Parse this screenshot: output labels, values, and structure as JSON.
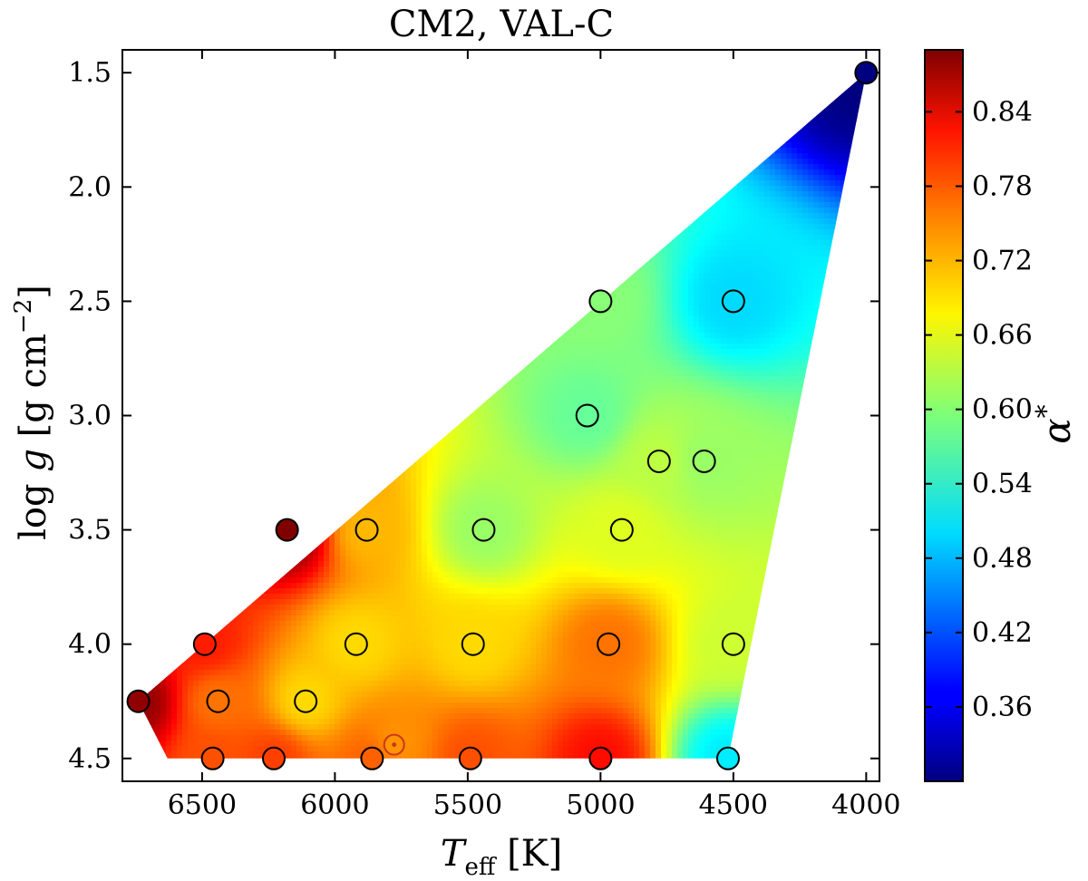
{
  "chart_data": {
    "type": "scatter",
    "title": "CM2, VAL-C",
    "xlabel": {
      "main": "T",
      "sub": "eff",
      "unit": " [K]"
    },
    "ylabel": {
      "pre": "log ",
      "var": "g",
      "unit": " [g cm",
      "exp": "−2",
      "close": "]"
    },
    "xlim": [
      6800,
      3950
    ],
    "ylim": [
      4.6,
      1.4
    ],
    "x_ticks": [
      6500,
      6000,
      5500,
      5000,
      4500,
      4000
    ],
    "y_ticks": [
      1.5,
      2.0,
      2.5,
      3.0,
      3.5,
      4.0,
      4.5
    ],
    "x_tick_labels": [
      "6500",
      "6000",
      "5500",
      "5000",
      "4500",
      "4000"
    ],
    "y_tick_labels": [
      "1.5",
      "2.0",
      "2.5",
      "3.0",
      "3.5",
      "4.0",
      "4.5"
    ],
    "colorbar": {
      "label": "α",
      "label_sup": "*",
      "range": [
        0.3,
        0.89
      ],
      "ticks": [
        0.36,
        0.42,
        0.48,
        0.54,
        0.6,
        0.66,
        0.72,
        0.78,
        0.84
      ],
      "tick_labels": [
        "0.36",
        "0.42",
        "0.48",
        "0.54",
        "0.60",
        "0.66",
        "0.72",
        "0.78",
        "0.84"
      ]
    },
    "points": [
      {
        "teff": 4000,
        "logg": 1.5,
        "alpha": 0.3
      },
      {
        "teff": 4500,
        "logg": 2.5,
        "alpha": 0.5
      },
      {
        "teff": 5000,
        "logg": 2.5,
        "alpha": 0.6
      },
      {
        "teff": 5050,
        "logg": 3.0,
        "alpha": 0.58
      },
      {
        "teff": 4610,
        "logg": 3.2,
        "alpha": 0.61
      },
      {
        "teff": 4780,
        "logg": 3.2,
        "alpha": 0.63
      },
      {
        "teff": 4920,
        "logg": 3.5,
        "alpha": 0.65
      },
      {
        "teff": 5440,
        "logg": 3.5,
        "alpha": 0.61
      },
      {
        "teff": 5880,
        "logg": 3.5,
        "alpha": 0.71
      },
      {
        "teff": 6180,
        "logg": 3.5,
        "alpha": 0.89
      },
      {
        "teff": 4500,
        "logg": 4.0,
        "alpha": 0.64
      },
      {
        "teff": 4970,
        "logg": 4.0,
        "alpha": 0.75
      },
      {
        "teff": 5480,
        "logg": 4.0,
        "alpha": 0.69
      },
      {
        "teff": 5920,
        "logg": 4.0,
        "alpha": 0.69
      },
      {
        "teff": 6490,
        "logg": 4.0,
        "alpha": 0.8
      },
      {
        "teff": 6740,
        "logg": 4.25,
        "alpha": 0.88
      },
      {
        "teff": 6440,
        "logg": 4.25,
        "alpha": 0.75
      },
      {
        "teff": 6110,
        "logg": 4.25,
        "alpha": 0.69
      },
      {
        "teff": 4520,
        "logg": 4.5,
        "alpha": 0.51
      },
      {
        "teff": 5000,
        "logg": 4.5,
        "alpha": 0.81
      },
      {
        "teff": 5490,
        "logg": 4.5,
        "alpha": 0.77
      },
      {
        "teff": 5860,
        "logg": 4.5,
        "alpha": 0.76
      },
      {
        "teff": 6230,
        "logg": 4.5,
        "alpha": 0.78
      },
      {
        "teff": 6460,
        "logg": 4.5,
        "alpha": 0.77
      }
    ],
    "sun": {
      "teff": 5777,
      "logg": 4.44,
      "alpha": 0.73
    }
  }
}
